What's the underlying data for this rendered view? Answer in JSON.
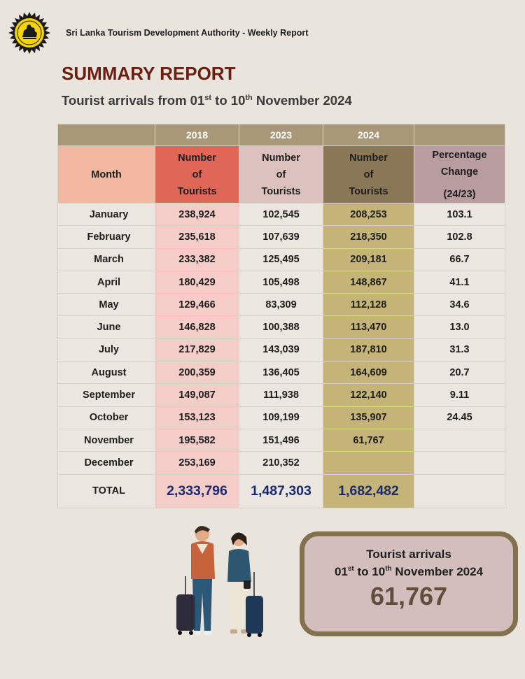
{
  "header": {
    "org": "Sri Lanka Tourism Development Authority - Weekly Report",
    "logo": "sri-lanka-lion-emblem"
  },
  "title": "SUMMARY REPORT",
  "subtitle": {
    "pre": "Tourist arrivals from 01",
    "sup1": "st",
    "mid": " to 10",
    "sup2": "th",
    "post": " November 2024"
  },
  "table": {
    "years": [
      "2018",
      "2023",
      "2024"
    ],
    "month_header": "Month",
    "col_header": {
      "l1": "Number",
      "l2": "of",
      "l3": "Tourists"
    },
    "pct_header": {
      "l1": "Percentage",
      "l2": "Change",
      "l3": "(24/23)"
    },
    "rows": [
      {
        "month": "January",
        "y2018": "238,924",
        "y2023": "102,545",
        "y2024": "208,253",
        "pct": "103.1"
      },
      {
        "month": "February",
        "y2018": "235,618",
        "y2023": "107,639",
        "y2024": "218,350",
        "pct": "102.8"
      },
      {
        "month": "March",
        "y2018": "233,382",
        "y2023": "125,495",
        "y2024": "209,181",
        "pct": "66.7"
      },
      {
        "month": "April",
        "y2018": "180,429",
        "y2023": "105,498",
        "y2024": "148,867",
        "pct": "41.1"
      },
      {
        "month": "May",
        "y2018": "129,466",
        "y2023": "83,309",
        "y2024": "112,128",
        "pct": "34.6"
      },
      {
        "month": "June",
        "y2018": "146,828",
        "y2023": "100,388",
        "y2024": "113,470",
        "pct": "13.0"
      },
      {
        "month": "July",
        "y2018": "217,829",
        "y2023": "143,039",
        "y2024": "187,810",
        "pct": "31.3"
      },
      {
        "month": "August",
        "y2018": "200,359",
        "y2023": "136,405",
        "y2024": "164,609",
        "pct": "20.7"
      },
      {
        "month": "September",
        "y2018": "149,087",
        "y2023": "111,938",
        "y2024": "122,140",
        "pct": "9.11"
      },
      {
        "month": "October",
        "y2018": "153,123",
        "y2023": "109,199",
        "y2024": "135,907",
        "pct": "24.45"
      },
      {
        "month": "November",
        "y2018": "195,582",
        "y2023": "151,496",
        "y2024": "61,767",
        "pct": ""
      },
      {
        "month": "December",
        "y2018": "253,169",
        "y2023": "210,352",
        "y2024": "",
        "pct": ""
      }
    ],
    "total": {
      "label": "TOTAL",
      "y2018": "2,333,796",
      "y2023": "1,487,303",
      "y2024": "1,682,482"
    }
  },
  "box": {
    "line1": "Tourist arrivals",
    "line2": {
      "pre": "01",
      "sup1": "st",
      "mid": " to 10",
      "sup2": "th",
      "post": " November 2024"
    },
    "number": "61,767"
  },
  "colors": {
    "title": "#6b1f12",
    "totals": "#1a2b6c",
    "box_border": "#82704e"
  }
}
